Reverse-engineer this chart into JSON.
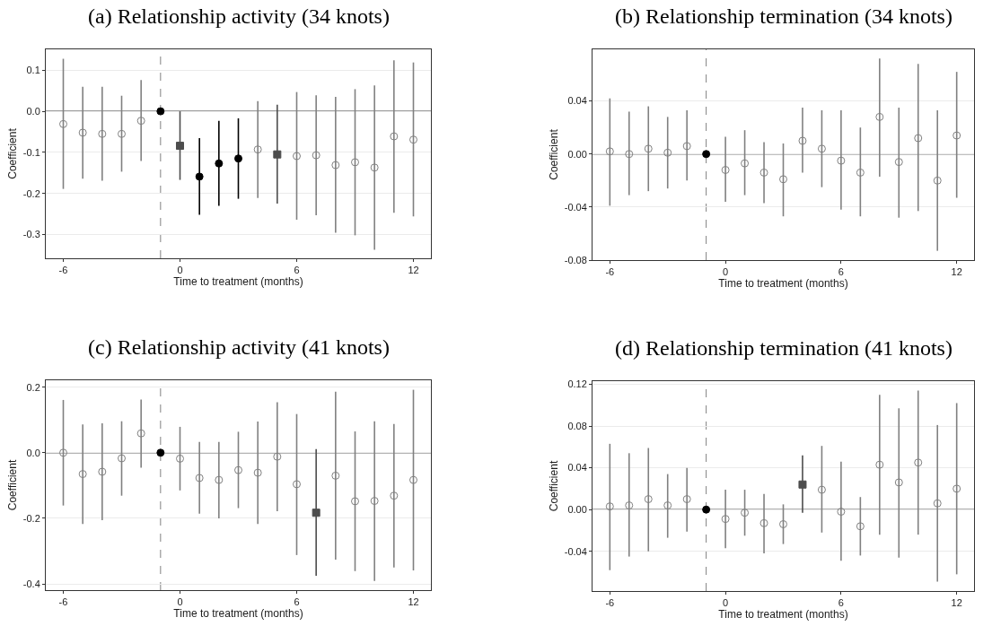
{
  "chart_data": [
    {
      "type": "scatter",
      "title": "(a) Relationship activity (34 knots)",
      "xlabel": "Time to treatment (months)",
      "ylabel": "Coefficient",
      "xlim": [
        -6.9,
        12.9
      ],
      "xticks": [
        -6,
        0,
        6,
        12
      ],
      "ylim": [
        -0.358,
        0.151
      ],
      "yticks": [
        {
          "value": -0.3,
          "label": "-0.3"
        },
        {
          "value": -0.2,
          "label": "-0.2"
        },
        {
          "value": -0.1,
          "label": "-0.1"
        },
        {
          "value": 0,
          "label": "0.0"
        },
        {
          "value": 0.1,
          "label": "0.1"
        }
      ],
      "grid": "y",
      "ref_lines": [
        {
          "axis": "y",
          "value": 0,
          "color": "#000000",
          "line_style": "solid"
        },
        {
          "axis": "x",
          "value": -1,
          "color": "#808080",
          "line_style": "dashed"
        }
      ],
      "series": [
        {
          "color": "#808080",
          "marker": "circle",
          "x": [
            -6,
            -5,
            -4,
            -3,
            -2,
            4,
            6,
            7,
            8,
            9,
            10,
            11,
            12
          ],
          "values": [
            -0.031,
            -0.052,
            -0.055,
            -0.055,
            -0.023,
            -0.093,
            -0.109,
            -0.107,
            -0.131,
            -0.124,
            -0.137,
            -0.061,
            -0.069
          ],
          "errors": [
            [
              -0.189,
              0.128
            ],
            [
              -0.164,
              0.06
            ],
            [
              -0.169,
              0.06
            ],
            [
              -0.147,
              0.038
            ],
            [
              -0.121,
              0.076
            ],
            [
              -0.211,
              0.025
            ],
            [
              -0.264,
              0.047
            ],
            [
              -0.253,
              0.039
            ],
            [
              -0.296,
              0.035
            ],
            [
              -0.302,
              0.054
            ],
            [
              -0.337,
              0.063
            ],
            [
              -0.247,
              0.124
            ],
            [
              -0.256,
              0.119
            ]
          ]
        },
        {
          "color": "#4d4d4d",
          "marker": "square",
          "x": [
            0,
            5
          ],
          "values": [
            -0.084,
            -0.105
          ],
          "errors": [
            [
              -0.167,
              0.0
            ],
            [
              -0.225,
              0.016
            ]
          ]
        },
        {
          "color": "#000000",
          "marker": "circle",
          "x": [
            -1,
            1,
            2,
            3
          ],
          "values": [
            0,
            -0.159,
            -0.127,
            -0.115
          ],
          "errors": [
            null,
            [
              -0.252,
              -0.065
            ],
            [
              -0.23,
              -0.023
            ],
            [
              -0.213,
              -0.017
            ]
          ]
        }
      ]
    },
    {
      "type": "scatter",
      "title": "(b) Relationship termination (34 knots)",
      "xlabel": "Time to treatment (months)",
      "ylabel": "Coefficient",
      "xlim": [
        -6.9,
        12.9
      ],
      "xticks": [
        -6,
        0,
        6,
        12
      ],
      "ylim": [
        -0.08,
        0.079
      ],
      "yticks": [
        {
          "value": -0.08,
          "label": "-0.08"
        },
        {
          "value": -0.04,
          "label": "-0.04"
        },
        {
          "value": 0,
          "label": "0.00"
        },
        {
          "value": 0.04,
          "label": "0.04"
        }
      ],
      "grid": "y",
      "ref_lines": [
        {
          "axis": "y",
          "value": 0,
          "color": "#000000",
          "line_style": "solid"
        },
        {
          "axis": "x",
          "value": -1,
          "color": "#808080",
          "line_style": "dashed"
        }
      ],
      "series": [
        {
          "color": "#808080",
          "marker": "circle",
          "x": [
            -6,
            -5,
            -4,
            -3,
            -2,
            0,
            1,
            2,
            3,
            4,
            5,
            6,
            7,
            8,
            9,
            10,
            11,
            12
          ],
          "values": [
            0.002,
            0.0,
            0.004,
            0.001,
            0.006,
            -0.012,
            -0.007,
            -0.014,
            -0.019,
            0.01,
            0.004,
            -0.005,
            -0.014,
            0.028,
            -0.006,
            0.012,
            -0.02,
            0.014
          ],
          "errors": [
            [
              -0.039,
              0.042
            ],
            [
              -0.031,
              0.032
            ],
            [
              -0.028,
              0.036
            ],
            [
              -0.026,
              0.028
            ],
            [
              -0.02,
              0.033
            ],
            [
              -0.036,
              0.013
            ],
            [
              -0.031,
              0.018
            ],
            [
              -0.037,
              0.009
            ],
            [
              -0.047,
              0.008
            ],
            [
              -0.014,
              0.035
            ],
            [
              -0.025,
              0.033
            ],
            [
              -0.042,
              0.033
            ],
            [
              -0.047,
              0.02
            ],
            [
              -0.017,
              0.072
            ],
            [
              -0.048,
              0.035
            ],
            [
              -0.043,
              0.068
            ],
            [
              -0.073,
              0.033
            ],
            [
              -0.033,
              0.062
            ]
          ]
        },
        {
          "color": "#000000",
          "marker": "circle",
          "x": [
            -1
          ],
          "values": [
            0
          ],
          "errors": [
            null
          ]
        }
      ]
    },
    {
      "type": "scatter",
      "title": "(c) Relationship activity (41 knots)",
      "xlabel": "Time to treatment (months)",
      "ylabel": "Coefficient",
      "xlim": [
        -6.9,
        12.9
      ],
      "xticks": [
        -6,
        0,
        6,
        12
      ],
      "ylim": [
        -0.419,
        0.221
      ],
      "yticks": [
        {
          "value": -0.4,
          "label": "-0.4"
        },
        {
          "value": -0.2,
          "label": "-0.2"
        },
        {
          "value": 0,
          "label": "0.0"
        },
        {
          "value": 0.2,
          "label": "0.2"
        }
      ],
      "grid": "y",
      "ref_lines": [
        {
          "axis": "y",
          "value": 0,
          "color": "#000000",
          "line_style": "solid"
        },
        {
          "axis": "x",
          "value": -1,
          "color": "#808080",
          "line_style": "dashed"
        }
      ],
      "series": [
        {
          "color": "#808080",
          "marker": "circle",
          "x": [
            -6,
            -5,
            -4,
            -3,
            -2,
            0,
            1,
            2,
            3,
            4,
            5,
            6,
            8,
            9,
            10,
            11,
            12
          ],
          "values": [
            0.0,
            -0.065,
            -0.058,
            -0.017,
            0.059,
            -0.018,
            -0.077,
            -0.083,
            -0.053,
            -0.061,
            -0.012,
            -0.096,
            -0.07,
            -0.148,
            -0.147,
            -0.131,
            -0.083
          ],
          "errors": [
            [
              -0.161,
              0.161
            ],
            [
              -0.217,
              0.086
            ],
            [
              -0.206,
              0.09
            ],
            [
              -0.131,
              0.096
            ],
            [
              -0.046,
              0.162
            ],
            [
              -0.115,
              0.079
            ],
            [
              -0.186,
              0.033
            ],
            [
              -0.2,
              0.033
            ],
            [
              -0.169,
              0.064
            ],
            [
              -0.217,
              0.095
            ],
            [
              -0.178,
              0.154
            ],
            [
              -0.312,
              0.118
            ],
            [
              -0.326,
              0.186
            ],
            [
              -0.361,
              0.065
            ],
            [
              -0.391,
              0.096
            ],
            [
              -0.35,
              0.088
            ],
            [
              -0.359,
              0.192
            ]
          ]
        },
        {
          "color": "#4d4d4d",
          "marker": "square",
          "x": [
            7
          ],
          "values": [
            -0.183
          ],
          "errors": [
            [
              -0.375,
              0.011
            ]
          ]
        },
        {
          "color": "#000000",
          "marker": "circle",
          "x": [
            -1
          ],
          "values": [
            0
          ],
          "errors": [
            null
          ]
        }
      ]
    },
    {
      "type": "scatter",
      "title": "(d) Relationship termination (41 knots)",
      "xlabel": "Time to treatment (months)",
      "ylabel": "Coefficient",
      "xlim": [
        -6.9,
        12.9
      ],
      "xticks": [
        -6,
        0,
        6,
        12
      ],
      "ylim": [
        -0.078,
        0.123
      ],
      "yticks": [
        {
          "value": -0.04,
          "label": "-0.04"
        },
        {
          "value": 0,
          "label": "0.00"
        },
        {
          "value": 0.04,
          "label": "0.04"
        },
        {
          "value": 0.08,
          "label": "0.08"
        },
        {
          "value": 0.12,
          "label": "0.12"
        }
      ],
      "grid": "y",
      "ref_lines": [
        {
          "axis": "y",
          "value": 0,
          "color": "#000000",
          "line_style": "solid"
        },
        {
          "axis": "x",
          "value": -1,
          "color": "#808080",
          "line_style": "dashed"
        }
      ],
      "series": [
        {
          "color": "#808080",
          "marker": "circle",
          "x": [
            -6,
            -5,
            -4,
            -3,
            -2,
            0,
            1,
            2,
            3,
            5,
            6,
            7,
            8,
            9,
            10,
            11,
            12
          ],
          "values": [
            0.003,
            0.004,
            0.01,
            0.004,
            0.01,
            -0.009,
            -0.003,
            -0.013,
            -0.014,
            0.019,
            -0.002,
            -0.016,
            0.043,
            0.026,
            0.045,
            0.006,
            0.02
          ],
          "errors": [
            [
              -0.058,
              0.063
            ],
            [
              -0.045,
              0.054
            ],
            [
              -0.04,
              0.059
            ],
            [
              -0.027,
              0.034
            ],
            [
              -0.021,
              0.04
            ],
            [
              -0.037,
              0.019
            ],
            [
              -0.025,
              0.019
            ],
            [
              -0.042,
              0.015
            ],
            [
              -0.033,
              0.005
            ],
            [
              -0.022,
              0.061
            ],
            [
              -0.049,
              0.046
            ],
            [
              -0.044,
              0.012
            ],
            [
              -0.024,
              0.11
            ],
            [
              -0.046,
              0.097
            ],
            [
              -0.024,
              0.114
            ],
            [
              -0.069,
              0.081
            ],
            [
              -0.062,
              0.102
            ]
          ]
        },
        {
          "color": "#4d4d4d",
          "marker": "square",
          "x": [
            4
          ],
          "values": [
            0.024
          ],
          "errors": [
            [
              -0.003,
              0.052
            ]
          ]
        },
        {
          "color": "#000000",
          "marker": "circle",
          "x": [
            -1
          ],
          "values": [
            0
          ],
          "errors": [
            null
          ]
        }
      ]
    }
  ]
}
